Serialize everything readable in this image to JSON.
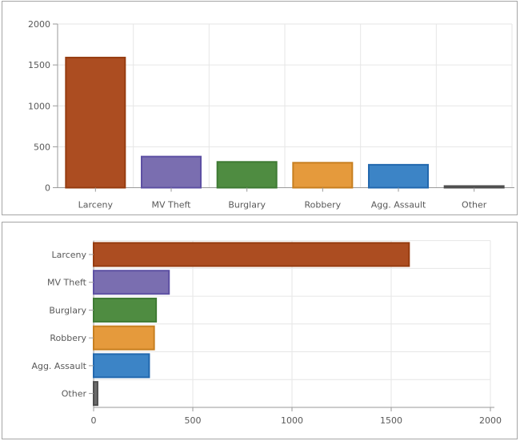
{
  "styles": {
    "page_background": "#ffffff",
    "panel_border": "#a5a5a5",
    "plot_background": "#ffffff",
    "grid_color": "#e6e6e6",
    "axis_color": "#9a9a9a",
    "tick_color": "#9a9a9a",
    "label_color": "#595959"
  },
  "chart_data": [
    {
      "type": "bar",
      "orientation": "vertical",
      "title": "",
      "xlabel": "",
      "ylabel": "",
      "legend": false,
      "grid": true,
      "categories": [
        "Larceny",
        "MV Theft",
        "Burglary",
        "Robbery",
        "Agg. Assault",
        "Other"
      ],
      "values": [
        1590,
        380,
        315,
        305,
        280,
        20
      ],
      "bar_fill_colors": [
        "#ac4d21",
        "#7a6eb0",
        "#4f8c41",
        "#e59a3c",
        "#3c84c6",
        "#6b6b6b"
      ],
      "bar_border_colors": [
        "#963c10",
        "#5d50a3",
        "#3e7a33",
        "#c77f20",
        "#2268ae",
        "#4f4f4f"
      ],
      "value_axis": {
        "min": 0,
        "max": 2000,
        "ticks": [
          0,
          500,
          1000,
          1500,
          2000
        ],
        "tick_labels": [
          "0",
          "500",
          "1000",
          "1500",
          "2000"
        ]
      }
    },
    {
      "type": "bar",
      "orientation": "horizontal",
      "title": "",
      "xlabel": "",
      "ylabel": "",
      "legend": false,
      "grid": true,
      "categories": [
        "Larceny",
        "MV Theft",
        "Burglary",
        "Robbery",
        "Agg. Assault",
        "Other"
      ],
      "values": [
        1590,
        380,
        315,
        305,
        280,
        20
      ],
      "bar_fill_colors": [
        "#ac4d21",
        "#7a6eb0",
        "#4f8c41",
        "#e59a3c",
        "#3c84c6",
        "#6b6b6b"
      ],
      "bar_border_colors": [
        "#963c10",
        "#5d50a3",
        "#3e7a33",
        "#c77f20",
        "#2268ae",
        "#4f4f4f"
      ],
      "value_axis": {
        "min": 0,
        "max": 2000,
        "ticks": [
          0,
          500,
          1000,
          1500,
          2000
        ],
        "tick_labels": [
          "0",
          "500",
          "1000",
          "1500",
          "2000"
        ]
      }
    }
  ]
}
